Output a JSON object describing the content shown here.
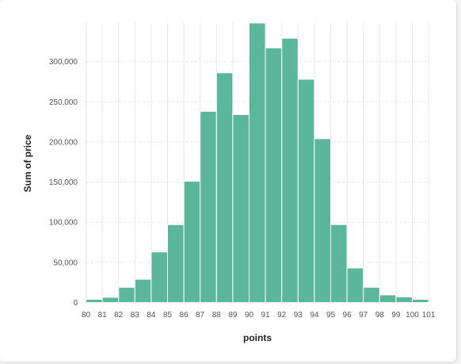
{
  "chart_data": {
    "type": "bar",
    "xlabel": "points",
    "ylabel": "Sum of price",
    "categories": [
      "80",
      "81",
      "82",
      "83",
      "84",
      "85",
      "86",
      "87",
      "88",
      "89",
      "90",
      "91",
      "92",
      "93",
      "94",
      "95",
      "96",
      "97",
      "98",
      "99",
      "100"
    ],
    "x_tick_labels": [
      "80",
      "81",
      "82",
      "83",
      "84",
      "85",
      "86",
      "87",
      "88",
      "89",
      "90",
      "91",
      "92",
      "93",
      "94",
      "95",
      "96",
      "97",
      "98",
      "99",
      "100",
      "101"
    ],
    "values": [
      4000,
      6500,
      19000,
      29000,
      63000,
      97000,
      151000,
      238000,
      286000,
      234000,
      348000,
      317000,
      329000,
      278000,
      204000,
      97000,
      43000,
      19000,
      9500,
      7000,
      4000
    ],
    "y_ticks": [
      0,
      50000,
      100000,
      150000,
      200000,
      250000,
      300000
    ],
    "y_tick_labels": [
      "0",
      "50,000",
      "100,000",
      "150,000",
      "200,000",
      "250,000",
      "300,000"
    ],
    "ylim": [
      0,
      348000
    ],
    "grid": true,
    "colors": {
      "bar": "#5ab79a",
      "bar_stroke": "#ffffff",
      "grid": "#e6e6e6"
    }
  }
}
